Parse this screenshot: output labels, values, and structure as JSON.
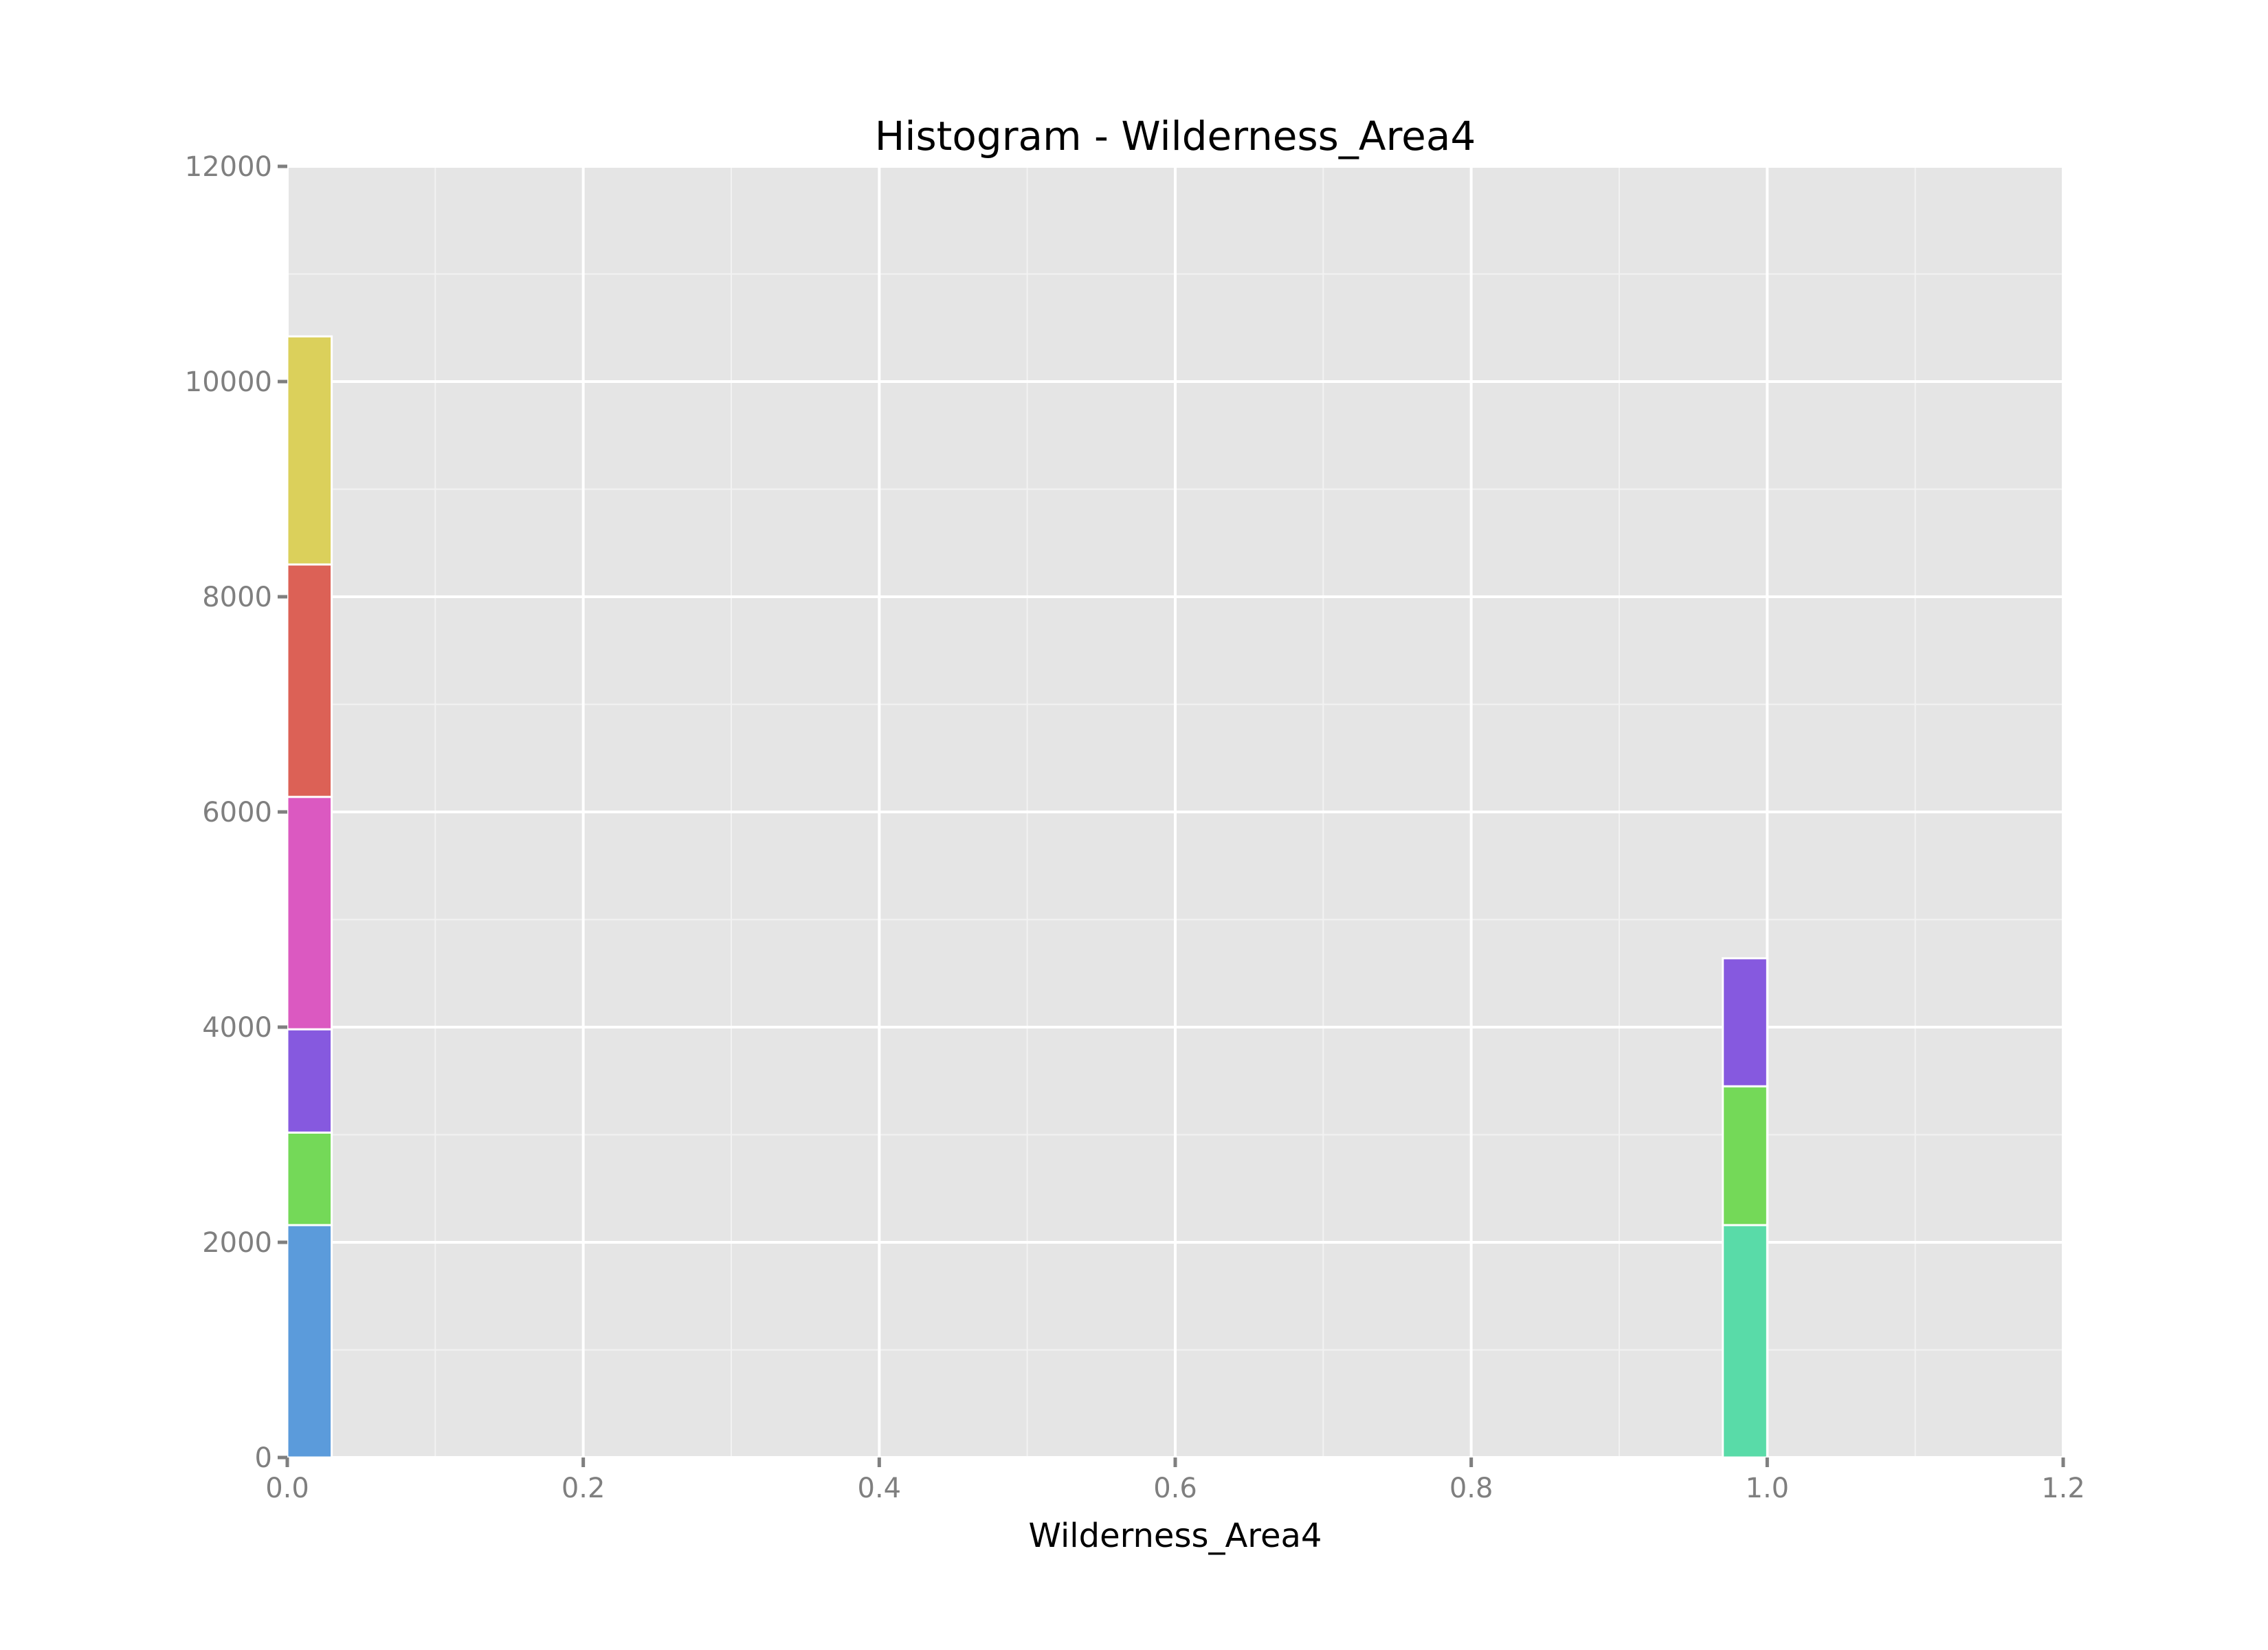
{
  "chart_data": {
    "type": "bar",
    "title": "Histogram - Wilderness_Area4",
    "xlabel": "Wilderness_Area4",
    "ylabel": "",
    "xlim": [
      0.0,
      1.2
    ],
    "ylim": [
      0,
      12000
    ],
    "xticks": [
      "0.0",
      "0.2",
      "0.4",
      "0.6",
      "0.8",
      "1.0",
      "1.2"
    ],
    "yticks": [
      "0",
      "2000",
      "4000",
      "6000",
      "8000",
      "10000",
      "12000"
    ],
    "grid": true,
    "legend": "none",
    "bin_width": 0.03,
    "bins": [
      {
        "x_start": 0.0,
        "stacks": [
          {
            "value": 2160,
            "color": "#5b9bdb"
          },
          {
            "value": 860,
            "color": "#74d958"
          },
          {
            "value": 960,
            "color": "#8659df"
          },
          {
            "value": 2160,
            "color": "#db59c1"
          },
          {
            "value": 2160,
            "color": "#dc6156"
          },
          {
            "value": 2120,
            "color": "#dbd05b"
          }
        ]
      },
      {
        "x_start": 0.97,
        "stacks": [
          {
            "value": 2160,
            "color": "#59dba8"
          },
          {
            "value": 1290,
            "color": "#74d958"
          },
          {
            "value": 1190,
            "color": "#8659df"
          }
        ]
      }
    ]
  }
}
